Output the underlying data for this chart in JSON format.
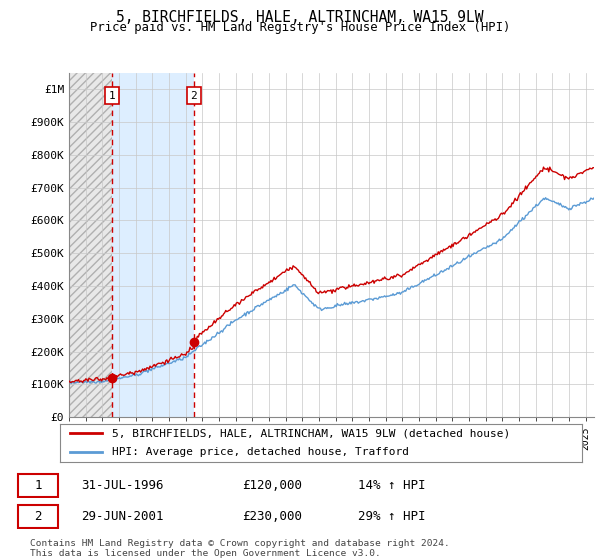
{
  "title": "5, BIRCHFIELDS, HALE, ALTRINCHAM, WA15 9LW",
  "subtitle": "Price paid vs. HM Land Registry's House Price Index (HPI)",
  "legend_line1": "5, BIRCHFIELDS, HALE, ALTRINCHAM, WA15 9LW (detached house)",
  "legend_line2": "HPI: Average price, detached house, Trafford",
  "transaction1_date": "31-JUL-1996",
  "transaction1_price": "£120,000",
  "transaction1_hpi": "14% ↑ HPI",
  "transaction2_date": "29-JUN-2001",
  "transaction2_price": "£230,000",
  "transaction2_hpi": "29% ↑ HPI",
  "footer": "Contains HM Land Registry data © Crown copyright and database right 2024.\nThis data is licensed under the Open Government Licence v3.0.",
  "hpi_color": "#5b9bd5",
  "price_color": "#cc0000",
  "marker_color": "#cc0000",
  "vline_color": "#cc0000",
  "hatch_color": "#d8d8d8",
  "blue_fill_color": "#ddeeff",
  "ylim": [
    0,
    1050000
  ],
  "yticks": [
    0,
    100000,
    200000,
    300000,
    400000,
    500000,
    600000,
    700000,
    800000,
    900000,
    1000000
  ],
  "ytick_labels": [
    "£0",
    "£100K",
    "£200K",
    "£300K",
    "£400K",
    "£500K",
    "£600K",
    "£700K",
    "£800K",
    "£900K",
    "£1M"
  ],
  "grid_color": "#c8c8c8",
  "t1_year": 1996.58,
  "t2_year": 2001.49,
  "price_t1": 120000,
  "price_t2": 230000,
  "xmin": 1994,
  "xmax": 2025.5
}
